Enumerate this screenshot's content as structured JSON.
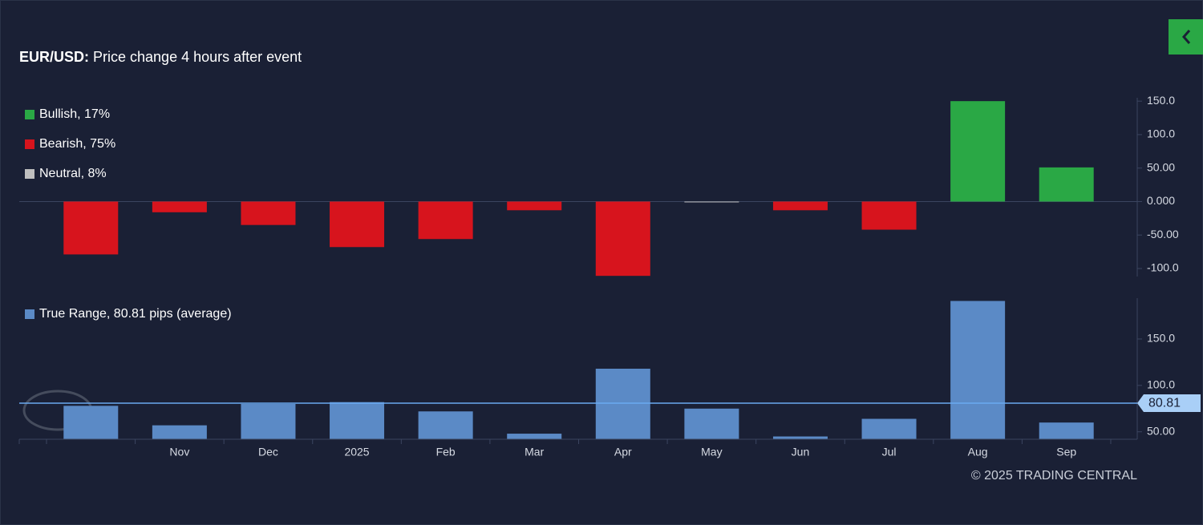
{
  "chart_data": [
    {
      "type": "bar",
      "title": "EUR/USD:",
      "subtitle": "Price change 4 hours after event",
      "values": [
        -79,
        -16,
        -35,
        -68,
        -56,
        -13,
        -111,
        -1,
        -13,
        -42,
        150,
        51
      ],
      "colors": [
        "#d7141d",
        "#d7141d",
        "#d7141d",
        "#d7141d",
        "#d7141d",
        "#d7141d",
        "#d7141d",
        "#bfbfbf",
        "#d7141d",
        "#d7141d",
        "#2aa845",
        "#2aa845"
      ],
      "legend": [
        {
          "name": "Bullish, 17%",
          "color": "#2aa845"
        },
        {
          "name": "Bearish, 75%",
          "color": "#d7141d"
        },
        {
          "name": "Neutral, 8%",
          "color": "#bfbfbf"
        }
      ],
      "ylim": [
        -112,
        155
      ],
      "yticks": [
        {
          "value": 150,
          "label": "150.0"
        },
        {
          "value": 100,
          "label": "100.0"
        },
        {
          "value": 50,
          "label": "50.00"
        },
        {
          "value": 0,
          "label": "0.000"
        },
        {
          "value": -50,
          "label": "-50.00"
        },
        {
          "value": -100,
          "label": "-100.0"
        }
      ]
    },
    {
      "type": "bar",
      "categories": [
        null,
        "Nov",
        "Dec",
        "2025",
        "Feb",
        "Mar",
        "Apr",
        "May",
        "Jun",
        "Jul",
        "Aug",
        "Sep"
      ],
      "values": [
        78,
        57,
        80,
        82,
        72,
        48,
        118,
        75,
        45,
        64,
        191,
        60
      ],
      "color": "#5b8ac6",
      "legend": [
        {
          "name": "True Range, 80.81 pips (average)",
          "color": "#5b8ac6"
        }
      ],
      "ylim": [
        42,
        194
      ],
      "yticks": [
        {
          "value": 150,
          "label": "150.0"
        },
        {
          "value": 100,
          "label": "100.0"
        },
        {
          "value": 50,
          "label": "50.00"
        }
      ],
      "reference_line": {
        "value": 80.81,
        "color": "#6aa9f0"
      }
    }
  ],
  "footer": "© 2025 TRADING CENTRAL"
}
